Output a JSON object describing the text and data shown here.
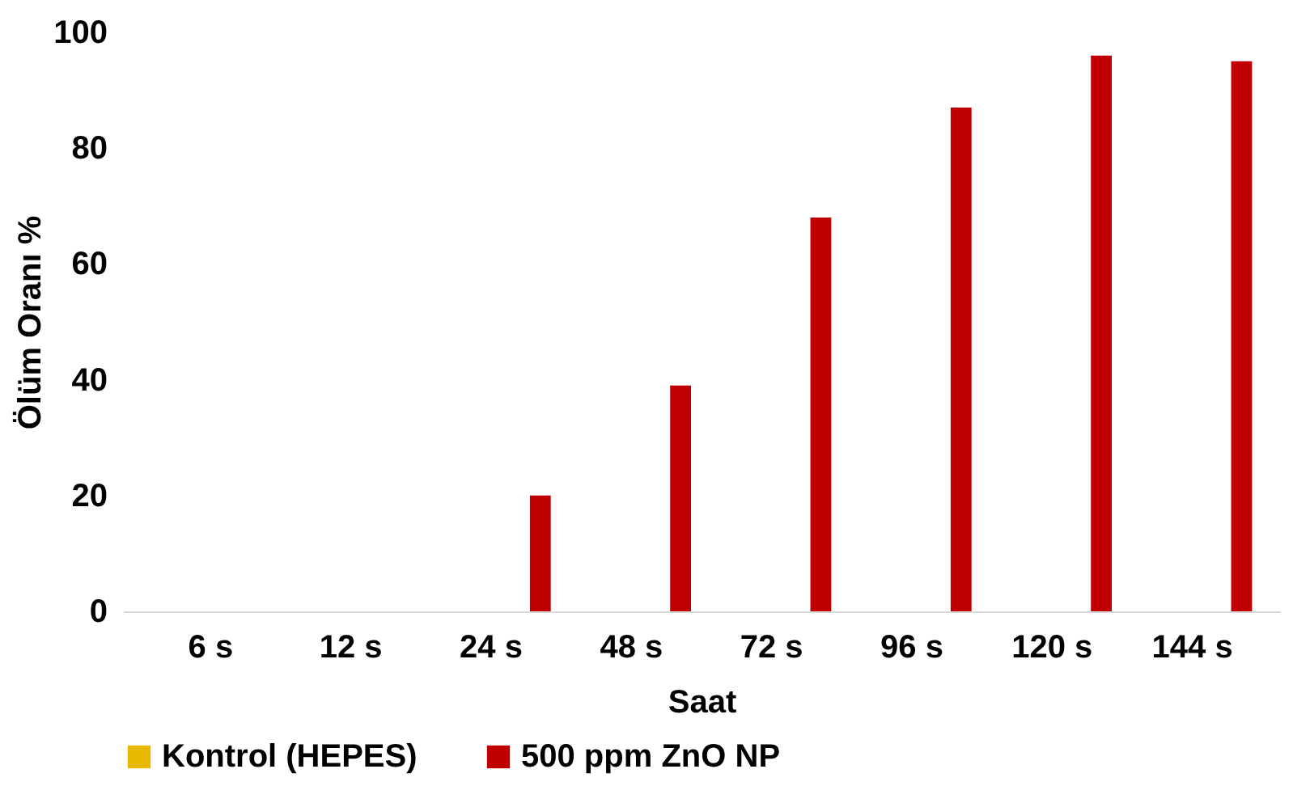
{
  "chart_data": {
    "type": "bar",
    "xlabel": "Saat",
    "ylabel": "Ölüm Oranı %",
    "categories": [
      "6 s",
      "12 s",
      "24 s",
      "48 s",
      "72 s",
      "96 s",
      "120 s",
      "144 s"
    ],
    "series": [
      {
        "name": "Kontrol (HEPES)",
        "color": "#e6b800",
        "values": [
          0,
          0,
          0,
          0,
          0,
          0,
          0,
          0
        ]
      },
      {
        "name": "500 ppm ZnO NP",
        "color": "#c00000",
        "values": [
          0,
          0,
          20,
          39,
          68,
          87,
          96,
          95
        ]
      }
    ],
    "ylim": [
      0,
      100
    ],
    "yticks": [
      0,
      20,
      40,
      60,
      80,
      100
    ],
    "grid": false,
    "legend": "bottom"
  }
}
